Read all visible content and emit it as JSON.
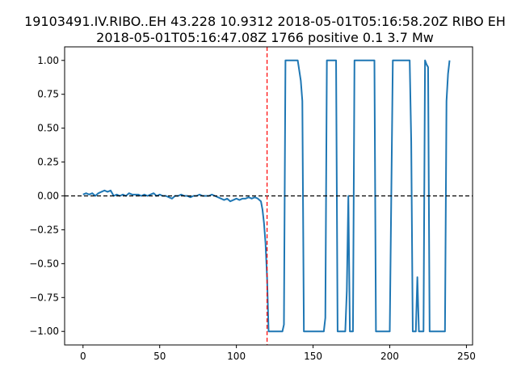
{
  "chart_data": {
    "type": "line",
    "title_line1": "19103491.IV.RIBO..EH 43.228 10.9312 2018-05-01T05:16:58.20Z RIBO EH",
    "title_line2": "2018-05-01T05:16:47.08Z 1766 positive 0.1 3.7 Mw",
    "xlabel": "",
    "ylabel": "",
    "xlim": [
      -12,
      254
    ],
    "ylim": [
      -1.1,
      1.1
    ],
    "x_ticks": [
      0,
      50,
      100,
      150,
      200,
      250
    ],
    "y_ticks": [
      1.0,
      0.75,
      0.5,
      0.25,
      0.0,
      -0.25,
      -0.5,
      -0.75,
      -1.0
    ],
    "x_tick_labels": [
      "0",
      "50",
      "100",
      "150",
      "200",
      "250"
    ],
    "y_tick_labels": [
      "1.00",
      "0.75",
      "0.50",
      "0.25",
      "0.00",
      "−0.25",
      "−0.50",
      "−0.75",
      "−1.00"
    ],
    "grid": false,
    "legend": "none",
    "reference_lines": [
      {
        "orientation": "horizontal",
        "value": 0,
        "color": "#000000",
        "style": "dashed"
      },
      {
        "orientation": "vertical",
        "value": 120,
        "color": "#ff0000",
        "style": "dashed"
      }
    ],
    "series": [
      {
        "color": "#1f77b4",
        "x": [
          0,
          2,
          4,
          6,
          8,
          10,
          12,
          14,
          16,
          18,
          20,
          22,
          24,
          26,
          28,
          30,
          32,
          34,
          36,
          38,
          40,
          42,
          44,
          46,
          48,
          50,
          52,
          54,
          56,
          58,
          60,
          62,
          64,
          66,
          68,
          70,
          72,
          74,
          76,
          78,
          80,
          82,
          84,
          86,
          88,
          90,
          92,
          94,
          96,
          98,
          100,
          102,
          104,
          106,
          108,
          110,
          112,
          114,
          116,
          117,
          118,
          119,
          120,
          121,
          122,
          130,
          131,
          132,
          133,
          140,
          142,
          143,
          144,
          157,
          158,
          159,
          164,
          165,
          166,
          170,
          171,
          172,
          173,
          174,
          175,
          176,
          177,
          182,
          184,
          185,
          190,
          191,
          192,
          197,
          198,
          200,
          202,
          203,
          204,
          213,
          214,
          215,
          216,
          217,
          218,
          219,
          220,
          221,
          222,
          223,
          224,
          225,
          226,
          227,
          228,
          236,
          237,
          238,
          239
        ],
        "y": [
          0.01,
          0.02,
          0.01,
          0.02,
          0.0,
          0.02,
          0.03,
          0.04,
          0.03,
          0.04,
          0.0,
          0.01,
          0.0,
          0.01,
          0.0,
          0.02,
          0.01,
          0.01,
          0.01,
          0.0,
          0.01,
          0.0,
          0.01,
          0.02,
          0.0,
          0.01,
          0.0,
          0.0,
          -0.01,
          -0.02,
          0.0,
          0.0,
          0.01,
          0.0,
          0.0,
          -0.01,
          0.0,
          0.0,
          0.01,
          0.0,
          0.0,
          0.0,
          0.01,
          0.0,
          -0.01,
          -0.02,
          -0.03,
          -0.02,
          -0.04,
          -0.03,
          -0.02,
          -0.03,
          -0.02,
          -0.02,
          -0.01,
          -0.02,
          -0.01,
          -0.02,
          -0.04,
          -0.1,
          -0.2,
          -0.35,
          -0.6,
          -1.0,
          -1.0,
          -1.0,
          -0.95,
          1.0,
          1.0,
          1.0,
          0.85,
          0.7,
          -1.0,
          -1.0,
          -0.9,
          1.0,
          1.0,
          1.0,
          -1.0,
          -1.0,
          -1.0,
          -0.7,
          0.0,
          -1.0,
          -1.0,
          -1.0,
          1.0,
          1.0,
          1.0,
          1.0,
          1.0,
          -1.0,
          -1.0,
          -1.0,
          -1.0,
          -1.0,
          1.0,
          1.0,
          1.0,
          1.0,
          0.4,
          -1.0,
          -1.0,
          -1.0,
          -0.6,
          -1.0,
          -1.0,
          -1.0,
          -1.0,
          1.0,
          0.97,
          0.95,
          -1.0,
          -1.0,
          -1.0,
          -1.0,
          0.7,
          0.9,
          1.0
        ]
      }
    ]
  }
}
